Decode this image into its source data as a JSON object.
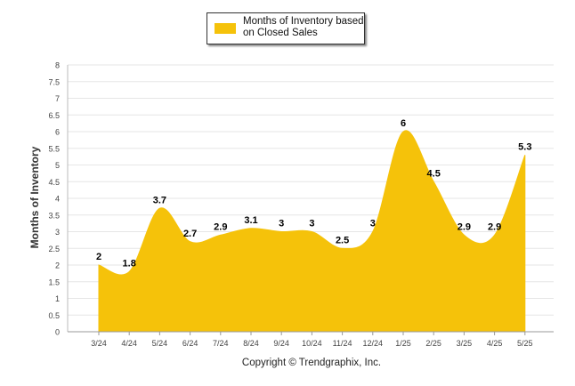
{
  "chart_data": {
    "type": "area",
    "categories": [
      "3/24",
      "4/24",
      "5/24",
      "6/24",
      "7/24",
      "8/24",
      "9/24",
      "10/24",
      "11/24",
      "12/24",
      "1/25",
      "2/25",
      "3/25",
      "4/25",
      "5/25"
    ],
    "series": [
      {
        "name": "Months of Inventory based on Closed Sales",
        "values": [
          2,
          1.8,
          3.7,
          2.7,
          2.9,
          3.1,
          3,
          3,
          2.5,
          3,
          6,
          4.5,
          2.9,
          2.9,
          5.3
        ]
      }
    ],
    "data_labels": [
      "2",
      "1.8",
      "3.7",
      "2.7",
      "2.9",
      "3.1",
      "3",
      "3",
      "2.5",
      "3",
      "6",
      "4.5",
      "2.9",
      "2.9",
      "5.3"
    ],
    "ylabel": "Months of Inventory",
    "ylim": [
      0,
      8
    ],
    "yticks": [
      "0",
      "0.5",
      "1",
      "1.5",
      "2",
      "2.5",
      "3",
      "3.5",
      "4",
      "4.5",
      "5",
      "5.5",
      "6",
      "6.5",
      "7",
      "7.5",
      "8"
    ],
    "grid": true,
    "legend_position": "top-center",
    "colors": {
      "fill": "#F5C20A",
      "grid": "#e6e6e6"
    }
  },
  "legend": {
    "line1": "Months of Inventory based",
    "line2": "on Closed Sales"
  },
  "footer": {
    "copyright": "Copyright © Trendgraphix, Inc."
  }
}
